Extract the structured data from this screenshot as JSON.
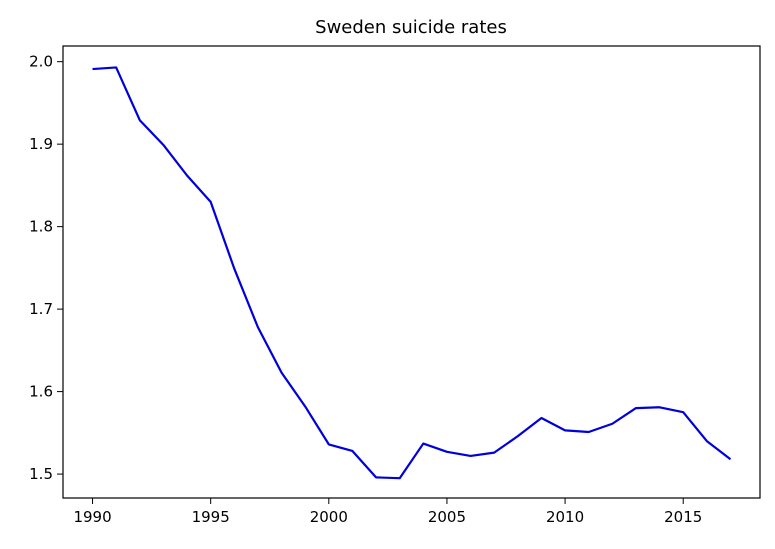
{
  "chart_data": {
    "type": "line",
    "title": "Sweden suicide rates",
    "xlabel": "",
    "ylabel": "",
    "xlim": [
      1988.75,
      2018.25
    ],
    "ylim": [
      1.471,
      2.019
    ],
    "xticks": [
      1990,
      1995,
      2000,
      2005,
      2010,
      2015
    ],
    "yticks": [
      1.5,
      1.6,
      1.7,
      1.8,
      1.9,
      2.0
    ],
    "xtick_labels": [
      "1990",
      "1995",
      "2000",
      "2005",
      "2010",
      "2015"
    ],
    "ytick_labels": [
      "1.5",
      "1.6",
      "1.7",
      "1.8",
      "1.9",
      "2.0"
    ],
    "grid": false,
    "series": [
      {
        "color": "#0000dd",
        "x": [
          1990,
          1991,
          1992,
          1993,
          1994,
          1995,
          1996,
          1997,
          1998,
          1999,
          2000,
          2001,
          2002,
          2003,
          2004,
          2005,
          2006,
          2007,
          2008,
          2009,
          2010,
          2011,
          2012,
          2013,
          2014,
          2015,
          2016,
          2017
        ],
        "values": [
          1.991,
          1.993,
          1.929,
          1.899,
          1.862,
          1.83,
          1.749,
          1.678,
          1.623,
          1.582,
          1.536,
          1.528,
          1.496,
          1.495,
          1.537,
          1.527,
          1.522,
          1.526,
          1.546,
          1.568,
          1.553,
          1.551,
          1.561,
          1.58,
          1.581,
          1.575,
          1.54,
          1.518
        ]
      }
    ]
  }
}
